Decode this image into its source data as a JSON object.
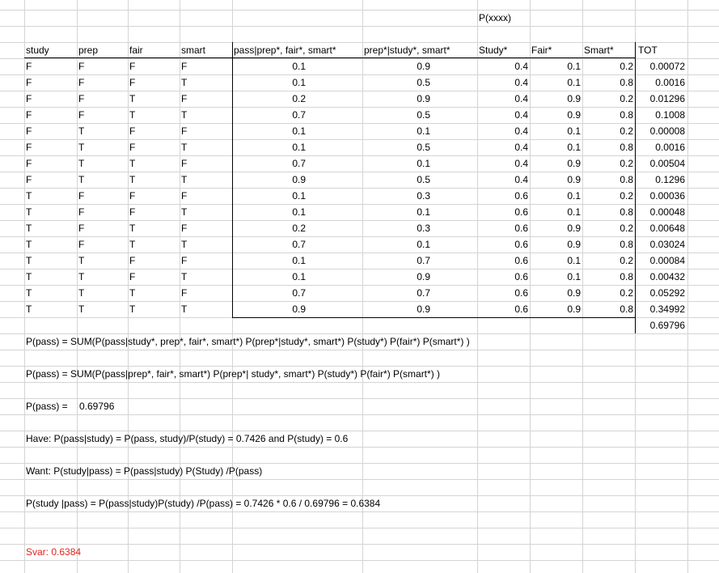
{
  "title_cell": "P(xxxx)",
  "headers": [
    "study",
    "prep",
    "fair",
    "smart",
    "pass|prep*, fair*, smart*",
    "prep*|study*, smart*",
    "Study*",
    "Fair*",
    "Smart*",
    "TOT"
  ],
  "rows": [
    [
      "F",
      "F",
      "F",
      "F",
      "0.1",
      "0.9",
      "0.4",
      "0.1",
      "0.2",
      "0.00072"
    ],
    [
      "F",
      "F",
      "F",
      "T",
      "0.1",
      "0.5",
      "0.4",
      "0.1",
      "0.8",
      "0.0016"
    ],
    [
      "F",
      "F",
      "T",
      "F",
      "0.2",
      "0.9",
      "0.4",
      "0.9",
      "0.2",
      "0.01296"
    ],
    [
      "F",
      "F",
      "T",
      "T",
      "0.7",
      "0.5",
      "0.4",
      "0.9",
      "0.8",
      "0.1008"
    ],
    [
      "F",
      "T",
      "F",
      "F",
      "0.1",
      "0.1",
      "0.4",
      "0.1",
      "0.2",
      "0.00008"
    ],
    [
      "F",
      "T",
      "F",
      "T",
      "0.1",
      "0.5",
      "0.4",
      "0.1",
      "0.8",
      "0.0016"
    ],
    [
      "F",
      "T",
      "T",
      "F",
      "0.7",
      "0.1",
      "0.4",
      "0.9",
      "0.2",
      "0.00504"
    ],
    [
      "F",
      "T",
      "T",
      "T",
      "0.9",
      "0.5",
      "0.4",
      "0.9",
      "0.8",
      "0.1296"
    ],
    [
      "T",
      "F",
      "F",
      "F",
      "0.1",
      "0.3",
      "0.6",
      "0.1",
      "0.2",
      "0.00036"
    ],
    [
      "T",
      "F",
      "F",
      "T",
      "0.1",
      "0.1",
      "0.6",
      "0.1",
      "0.8",
      "0.00048"
    ],
    [
      "T",
      "F",
      "T",
      "F",
      "0.2",
      "0.3",
      "0.6",
      "0.9",
      "0.2",
      "0.00648"
    ],
    [
      "T",
      "F",
      "T",
      "T",
      "0.7",
      "0.1",
      "0.6",
      "0.9",
      "0.8",
      "0.03024"
    ],
    [
      "T",
      "T",
      "F",
      "F",
      "0.1",
      "0.7",
      "0.6",
      "0.1",
      "0.2",
      "0.00084"
    ],
    [
      "T",
      "T",
      "F",
      "T",
      "0.1",
      "0.9",
      "0.6",
      "0.1",
      "0.8",
      "0.00432"
    ],
    [
      "T",
      "T",
      "T",
      "F",
      "0.7",
      "0.7",
      "0.6",
      "0.9",
      "0.2",
      "0.05292"
    ],
    [
      "T",
      "T",
      "T",
      "T",
      "0.9",
      "0.9",
      "0.6",
      "0.9",
      "0.8",
      "0.34992"
    ]
  ],
  "total": "0.69796",
  "notes": [
    "P(pass) = SUM(P(pass|study*, prep*, fair*, smart*) P(prep*|study*, smart*) P(study*) P(fair*) P(smart*) )",
    "P(pass) = SUM(P(pass|prep*, fair*, smart*) P(prep*| study*, smart*) P(study*) P(fair*) P(smart*) )",
    "Have: P(pass|study) = P(pass, study)/P(study) = 0.7426 and P(study) = 0.6",
    "Want: P(study|pass) = P(pass|study) P(Study) /P(pass)",
    "P(study |pass) = P(pass|study)P(study) /P(pass) = 0.7426 * 0.6 / 0.69796 = 0.6384"
  ],
  "ppass_label": "P(pass) =",
  "ppass_value": "0.69796",
  "answer": "Svar: 0.6384",
  "colors": {
    "grid": "#d4d4d4",
    "answer": "#e0241b"
  }
}
